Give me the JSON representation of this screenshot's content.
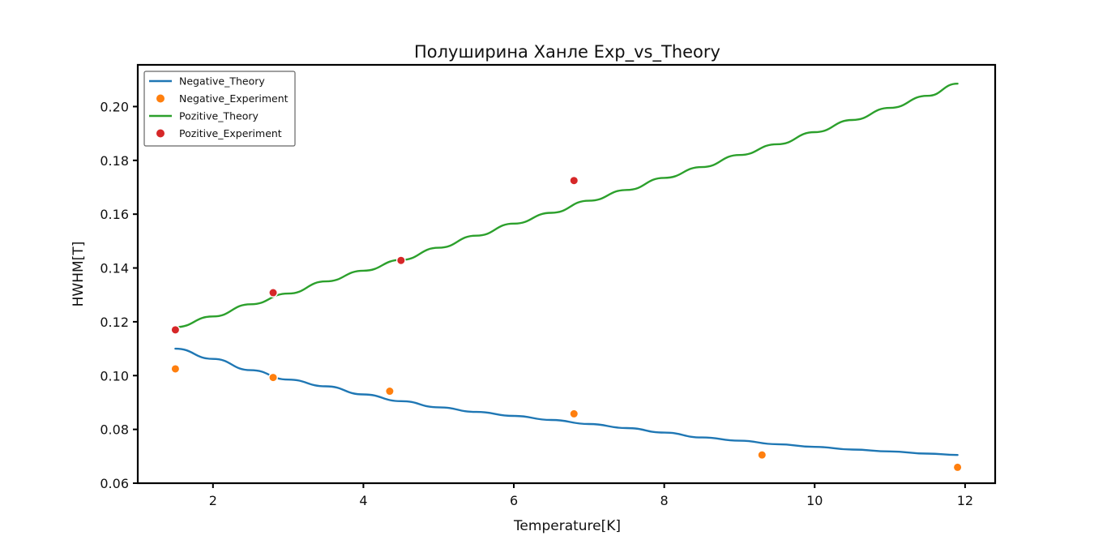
{
  "chart_data": {
    "type": "line",
    "title": "Полуширина Ханле Exp_vs_Theory",
    "xlabel": "Temperature[K]",
    "ylabel": "HWHM[T]",
    "xlim": [
      1.0,
      12.4
    ],
    "ylim": [
      0.06,
      0.2155
    ],
    "xticks": [
      "2",
      "4",
      "6",
      "8",
      "10",
      "12"
    ],
    "yticks": [
      "0.06",
      "0.08",
      "0.10",
      "0.12",
      "0.14",
      "0.16",
      "0.18",
      "0.20"
    ],
    "grid": false,
    "legend_position": "top-left",
    "series": [
      {
        "name": "Negative_Theory",
        "kind": "line",
        "color": "#1f77b4",
        "x": [
          1.5,
          2.0,
          2.5,
          3.0,
          3.5,
          4.0,
          4.5,
          5.0,
          5.5,
          6.0,
          6.5,
          7.0,
          7.5,
          8.0,
          8.5,
          9.0,
          9.5,
          10.0,
          10.5,
          11.0,
          11.5,
          11.9
        ],
        "y": [
          0.11,
          0.1062,
          0.102,
          0.0985,
          0.096,
          0.093,
          0.0905,
          0.0882,
          0.0865,
          0.085,
          0.0835,
          0.082,
          0.0805,
          0.0788,
          0.077,
          0.0758,
          0.0745,
          0.0735,
          0.0725,
          0.0718,
          0.071,
          0.0705
        ]
      },
      {
        "name": "Negative_Experiment",
        "kind": "scatter",
        "color": "#ff7f0e",
        "x": [
          1.5,
          2.8,
          4.35,
          6.8,
          9.3,
          11.9
        ],
        "y": [
          0.1025,
          0.0993,
          0.0942,
          0.0858,
          0.0705,
          0.0659
        ]
      },
      {
        "name": "Pozitive_Theory",
        "kind": "line",
        "color": "#2ca02c",
        "x": [
          1.5,
          2.0,
          2.5,
          3.0,
          3.5,
          4.0,
          4.5,
          5.0,
          5.5,
          6.0,
          6.5,
          7.0,
          7.5,
          8.0,
          8.5,
          9.0,
          9.5,
          10.0,
          10.5,
          11.0,
          11.5,
          11.9
        ],
        "y": [
          0.118,
          0.122,
          0.1265,
          0.1305,
          0.135,
          0.139,
          0.143,
          0.1475,
          0.152,
          0.1565,
          0.1605,
          0.165,
          0.169,
          0.1735,
          0.1775,
          0.182,
          0.186,
          0.1905,
          0.195,
          0.1995,
          0.204,
          0.2085
        ]
      },
      {
        "name": "Pozitive_Experiment",
        "kind": "scatter",
        "color": "#d62728",
        "x": [
          1.5,
          2.8,
          4.5,
          6.8
        ],
        "y": [
          0.117,
          0.1308,
          0.1428,
          0.1725
        ]
      }
    ]
  }
}
